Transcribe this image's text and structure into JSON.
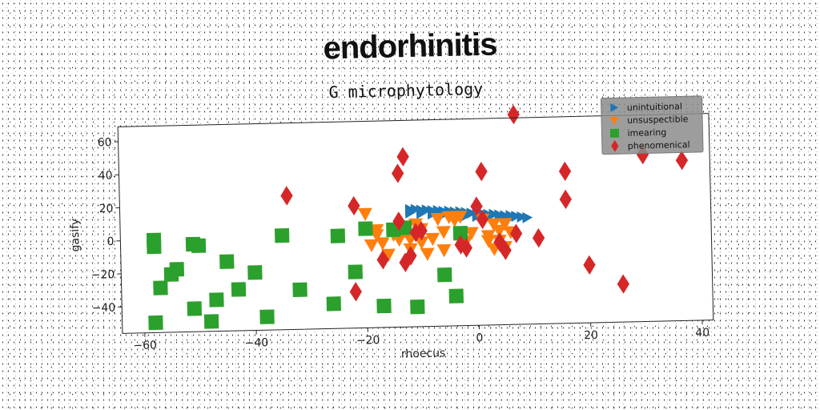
{
  "page_title": "endorhinitis",
  "chart_data": {
    "type": "scatter",
    "title": "G microphytology",
    "xlabel": "rhoecus",
    "ylabel": "gasify",
    "xlim": [
      -64,
      42
    ],
    "ylim": [
      -56,
      69
    ],
    "xticks": [
      -60,
      -40,
      -20,
      0,
      20,
      40
    ],
    "yticks": [
      -40,
      -20,
      0,
      20,
      40,
      60
    ],
    "xtick_labels": [
      "−60",
      "−40",
      "−20",
      "0",
      "20",
      "40"
    ],
    "ytick_labels": [
      "−40",
      "−20",
      "0",
      "20",
      "40",
      "60"
    ],
    "grid": false,
    "legend_position": "top-right",
    "series": [
      {
        "name": "unintuitional",
        "marker": "triangle-right",
        "color": "#1f77b4",
        "x": [
          -12,
          -11,
          -10,
          -9,
          -8,
          -7,
          -6,
          -5,
          -4,
          -3,
          -2,
          -1,
          0,
          1,
          2,
          3,
          4,
          5,
          6,
          7,
          8,
          9,
          -12,
          -10,
          -8,
          -6,
          -4,
          -2,
          0,
          2,
          4,
          6
        ],
        "y": [
          15,
          15,
          14.5,
          14.5,
          14,
          14,
          13.5,
          13.5,
          13,
          13,
          12.5,
          12,
          12,
          11.5,
          11,
          11,
          10.5,
          10,
          10,
          9.5,
          9,
          8.5,
          13,
          12.5,
          12,
          11.5,
          11,
          10.5,
          10,
          9.5,
          9,
          8.5
        ]
      },
      {
        "name": "unsuspectible",
        "marker": "triangle-down",
        "color": "#ff7f0e",
        "x": [
          -20,
          -19,
          -18,
          -17,
          -16,
          -15,
          -14,
          -13,
          -12,
          -11,
          -10,
          -9,
          -8,
          -7,
          -6,
          -5,
          -4,
          -3,
          -2,
          1,
          2,
          3,
          4,
          5,
          6,
          4,
          2,
          5,
          -10,
          -15,
          -12,
          -18,
          -6,
          -1,
          3
        ],
        "y": [
          13,
          -6,
          3,
          -5,
          -12,
          0,
          -3,
          2,
          -9,
          6,
          3,
          -12,
          -3,
          9,
          -10,
          10,
          8,
          10,
          -5,
          8,
          -2,
          -10,
          -5,
          5,
          0,
          1,
          -5,
          -9,
          -5,
          3,
          -3,
          0,
          1,
          0,
          5
        ]
      },
      {
        "name": "imearing",
        "marker": "square",
        "color": "#2ca02c",
        "x": [
          -58,
          -58,
          -58,
          -57,
          -55,
          -54,
          -51,
          -51,
          -50,
          -48,
          -47,
          -45,
          -43,
          -40,
          -38,
          -35,
          -32,
          -26,
          -25,
          -22,
          -20,
          -17,
          -15,
          -13,
          -11,
          -6,
          -4,
          -3
        ],
        "y": [
          0,
          -4,
          -50,
          -29,
          -21,
          -18,
          -3,
          -42,
          -4,
          -50,
          -37,
          -14,
          -31,
          -21,
          -48,
          1,
          -32,
          -41,
          0,
          -22,
          4,
          -43,
          3,
          4,
          -44,
          -25,
          -38,
          0
        ]
      },
      {
        "name": "phenomenical",
        "marker": "diamond",
        "color": "#d62728",
        "x": [
          -34,
          -22,
          -22,
          -17,
          -14,
          -14,
          -13,
          -13,
          -11,
          -10,
          -3,
          -2,
          0,
          1,
          1,
          4,
          5,
          7,
          7,
          11,
          16,
          16,
          20,
          26,
          30,
          37,
          -12
        ],
        "y": [
          25,
          18,
          -34,
          -15,
          37,
          8,
          47,
          -17,
          1,
          2,
          -7,
          -9,
          16,
          37,
          8,
          -6,
          -11,
          71,
          -1,
          -4,
          19,
          36,
          -21,
          -33,
          45,
          41,
          -13
        ]
      }
    ]
  }
}
